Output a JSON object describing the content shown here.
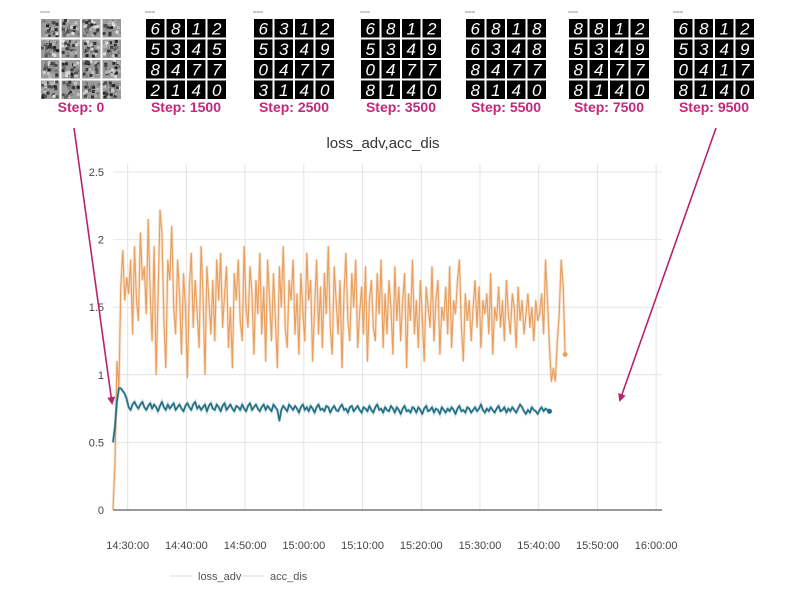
{
  "samples": [
    {
      "step_label": "Step: 0",
      "digits": [],
      "noise": true
    },
    {
      "step_label": "Step: 1500",
      "digits": [
        "6",
        "8",
        "1",
        "2",
        "5",
        "3",
        "4",
        "5",
        "8",
        "4",
        "7",
        "7",
        "2",
        "1",
        "4",
        "0"
      ],
      "noise": false
    },
    {
      "step_label": "Step: 2500",
      "digits": [
        "6",
        "3",
        "1",
        "2",
        "5",
        "3",
        "4",
        "9",
        "0",
        "4",
        "7",
        "7",
        "3",
        "1",
        "4",
        "0"
      ],
      "noise": false
    },
    {
      "step_label": "Step: 3500",
      "digits": [
        "6",
        "8",
        "1",
        "2",
        "5",
        "3",
        "4",
        "9",
        "0",
        "4",
        "7",
        "7",
        "8",
        "1",
        "4",
        "0"
      ],
      "noise": false
    },
    {
      "step_label": "Step: 5500",
      "digits": [
        "6",
        "8",
        "1",
        "8",
        "6",
        "3",
        "4",
        "8",
        "8",
        "4",
        "7",
        "7",
        "8",
        "1",
        "4",
        "0"
      ],
      "noise": false
    },
    {
      "step_label": "Step: 7500",
      "digits": [
        "8",
        "8",
        "1",
        "2",
        "5",
        "3",
        "4",
        "9",
        "8",
        "4",
        "7",
        "7",
        "8",
        "1",
        "4",
        "0"
      ],
      "noise": false
    },
    {
      "step_label": "Step: 9500",
      "digits": [
        "6",
        "8",
        "1",
        "2",
        "5",
        "3",
        "4",
        "9",
        "0",
        "4",
        "1",
        "7",
        "8",
        "1",
        "4",
        "0"
      ],
      "noise": false
    }
  ],
  "colors": {
    "step_label": "#c0287a",
    "arrow": "#b8246a",
    "loss_adv": "#e8a060",
    "acc_dis": "#1f6e83",
    "grid": "#e4e4e4",
    "axis": "#333333"
  },
  "chart_data": {
    "type": "line",
    "title": "loss_adv,acc_dis",
    "xlabel": "",
    "ylabel": "",
    "x_ticks": [
      "14:30:00",
      "14:40:00",
      "14:50:00",
      "15:00:00",
      "15:10:00",
      "15:20:00",
      "15:30:00",
      "15:40:00",
      "15:50:00",
      "16:00:00"
    ],
    "y_ticks": [
      "0",
      "0.5",
      "1",
      "1.5",
      "2",
      "2.5"
    ],
    "xlim": [
      "14:27:30",
      "16:01:00"
    ],
    "ylim": [
      0,
      2.5
    ],
    "grid": true,
    "legend_position": "bottom",
    "legend": [
      "loss_adv",
      "acc_dis"
    ],
    "series": [
      {
        "name": "loss_adv",
        "start": "14:27:30",
        "interval_seconds": 20,
        "values": [
          0.0,
          0.35,
          1.1,
          0.9,
          1.65,
          1.92,
          1.55,
          1.72,
          1.6,
          1.85,
          1.3,
          1.95,
          1.55,
          1.4,
          2.05,
          1.7,
          1.8,
          1.45,
          2.15,
          1.6,
          1.25,
          1.95,
          1.0,
          1.55,
          2.22,
          2.05,
          1.4,
          1.05,
          1.85,
          1.7,
          2.1,
          1.5,
          1.3,
          1.85,
          1.6,
          1.15,
          1.75,
          1.5,
          0.98,
          1.65,
          1.9,
          1.35,
          1.7,
          1.45,
          1.2,
          1.95,
          1.6,
          1.0,
          1.8,
          1.55,
          1.3,
          1.7,
          1.25,
          1.85,
          1.55,
          1.9,
          1.35,
          1.6,
          1.8,
          1.2,
          1.5,
          1.05,
          1.75,
          1.55,
          1.85,
          1.4,
          1.25,
          1.95,
          1.5,
          1.35,
          1.8,
          1.6,
          1.15,
          1.7,
          1.45,
          1.9,
          1.3,
          1.65,
          1.1,
          1.85,
          1.55,
          1.25,
          1.75,
          1.4,
          1.05,
          1.8,
          1.5,
          1.95,
          1.35,
          1.2,
          1.7,
          1.55,
          1.85,
          1.3,
          1.6,
          1.15,
          1.75,
          1.45,
          1.25,
          1.9,
          1.55,
          1.7,
          1.1,
          1.5,
          1.85,
          1.3,
          1.65,
          1.2,
          1.75,
          1.45,
          1.95,
          1.35,
          1.15,
          1.8,
          1.55,
          1.3,
          1.7,
          1.05,
          1.6,
          1.9,
          1.4,
          1.25,
          1.75,
          1.5,
          1.85,
          1.2,
          1.45,
          1.65,
          1.3,
          1.8,
          1.1,
          1.55,
          1.7,
          1.35,
          1.25,
          1.75,
          1.45,
          1.85,
          1.2,
          1.6,
          1.3,
          1.7,
          1.5,
          1.15,
          1.8,
          1.4,
          1.65,
          1.25,
          1.55,
          1.75,
          1.05,
          1.6,
          1.4,
          1.85,
          1.3,
          1.55,
          1.2,
          1.7,
          1.45,
          1.1,
          1.65,
          1.5,
          1.35,
          1.8,
          1.25,
          1.55,
          1.7,
          1.15,
          1.5,
          1.4,
          1.65,
          1.3,
          1.8,
          1.2,
          1.55,
          1.45,
          1.7,
          1.85,
          1.35,
          1.1,
          1.6,
          1.4,
          1.55,
          1.25,
          1.5,
          1.7,
          1.35,
          1.65,
          1.2,
          1.55,
          1.45,
          1.6,
          1.3,
          1.75,
          1.15,
          1.5,
          1.4,
          1.65,
          1.35,
          1.55,
          1.25,
          1.7,
          1.45,
          1.3,
          1.6,
          1.5,
          1.2,
          1.65,
          1.4,
          1.55,
          1.3,
          1.45,
          1.6,
          1.35,
          1.5,
          1.25,
          1.55,
          1.4,
          1.45,
          1.6,
          1.3,
          1.85,
          1.55,
          1.2,
          0.95,
          1.05,
          0.95,
          1.25,
          1.45,
          1.85,
          1.65,
          1.15
        ]
      },
      {
        "name": "acc_dis",
        "start": "14:27:30",
        "interval_seconds": 20,
        "values": [
          0.5,
          0.62,
          0.8,
          0.9,
          0.9,
          0.88,
          0.86,
          0.82,
          0.76,
          0.74,
          0.78,
          0.8,
          0.77,
          0.75,
          0.78,
          0.8,
          0.76,
          0.74,
          0.77,
          0.79,
          0.75,
          0.78,
          0.76,
          0.73,
          0.77,
          0.8,
          0.76,
          0.74,
          0.78,
          0.75,
          0.77,
          0.79,
          0.74,
          0.76,
          0.78,
          0.75,
          0.73,
          0.77,
          0.79,
          0.76,
          0.74,
          0.78,
          0.8,
          0.75,
          0.77,
          0.74,
          0.76,
          0.78,
          0.73,
          0.77,
          0.79,
          0.75,
          0.74,
          0.78,
          0.76,
          0.73,
          0.77,
          0.79,
          0.74,
          0.76,
          0.78,
          0.75,
          0.73,
          0.77,
          0.76,
          0.74,
          0.78,
          0.75,
          0.73,
          0.77,
          0.79,
          0.74,
          0.76,
          0.78,
          0.75,
          0.73,
          0.76,
          0.78,
          0.74,
          0.77,
          0.75,
          0.73,
          0.78,
          0.76,
          0.74,
          0.66,
          0.74,
          0.77,
          0.75,
          0.73,
          0.78,
          0.76,
          0.74,
          0.77,
          0.75,
          0.72,
          0.76,
          0.78,
          0.74,
          0.76,
          0.73,
          0.77,
          0.75,
          0.72,
          0.76,
          0.78,
          0.74,
          0.75,
          0.73,
          0.77,
          0.76,
          0.72,
          0.75,
          0.77,
          0.74,
          0.73,
          0.76,
          0.78,
          0.74,
          0.75,
          0.72,
          0.76,
          0.77,
          0.73,
          0.75,
          0.77,
          0.74,
          0.72,
          0.76,
          0.75,
          0.73,
          0.77,
          0.74,
          0.72,
          0.76,
          0.78,
          0.74,
          0.75,
          0.72,
          0.76,
          0.74,
          0.73,
          0.77,
          0.75,
          0.72,
          0.76,
          0.74,
          0.71,
          0.75,
          0.77,
          0.73,
          0.74,
          0.72,
          0.76,
          0.75,
          0.72,
          0.76,
          0.74,
          0.71,
          0.75,
          0.77,
          0.73,
          0.74,
          0.76,
          0.72,
          0.75,
          0.74,
          0.71,
          0.76,
          0.74,
          0.72,
          0.75,
          0.73,
          0.76,
          0.74,
          0.71,
          0.75,
          0.77,
          0.73,
          0.74,
          0.72,
          0.76,
          0.75,
          0.72,
          0.74,
          0.76,
          0.73,
          0.75,
          0.78,
          0.74,
          0.72,
          0.75,
          0.73,
          0.76,
          0.74,
          0.72,
          0.75,
          0.77,
          0.73,
          0.74,
          0.76,
          0.72,
          0.75,
          0.73,
          0.76,
          0.74,
          0.72,
          0.75,
          0.78,
          0.76,
          0.73,
          0.71,
          0.74,
          0.72,
          0.76,
          0.74,
          0.73,
          0.71,
          0.74,
          0.76,
          0.73,
          0.75,
          0.74,
          0.73
        ]
      }
    ]
  }
}
